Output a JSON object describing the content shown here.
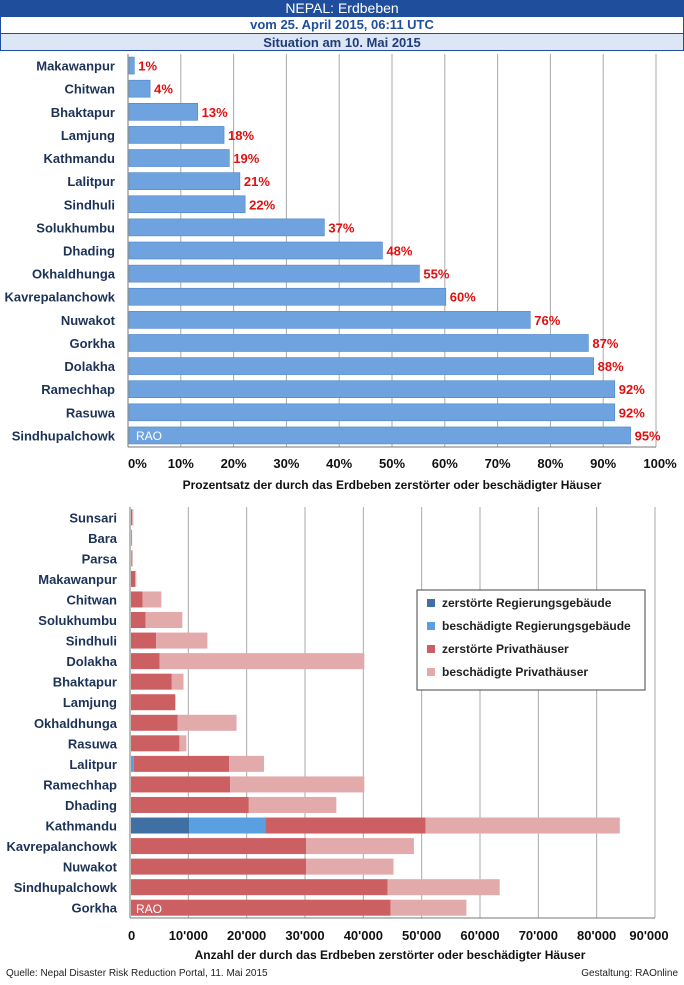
{
  "header": {
    "title": "NEPAL: Erdbeben",
    "subtitle": "vom 25. April 2015, 06:11 UTC",
    "situation": "Situation am 10. Mai 2015"
  },
  "watermark": "RAO",
  "footer": {
    "source": "Quelle:  Nepal Disaster Risk Reduction Portal, 11. Mai  2015",
    "credit": "Gestaltung: RAOnline"
  },
  "colors": {
    "bar1": "#6fa3e0",
    "label": "#e01010",
    "gov_destroyed": "#3f6fa3",
    "gov_damaged": "#5a9fe0",
    "priv_destroyed": "#cc5f62",
    "priv_damaged": "#e3aaab"
  },
  "chart_data": [
    {
      "type": "bar",
      "orientation": "horizontal",
      "categories": [
        "Makawanpur",
        "Chitwan",
        "Bhaktapur",
        "Lamjung",
        "Kathmandu",
        "Lalitpur",
        "Sindhuli",
        "Solukhumbu",
        "Dhading",
        "Okhaldhunga",
        "Kavrepalanchowk",
        "Nuwakot",
        "Gorkha",
        "Dolakha",
        "Ramechhap",
        "Rasuwa",
        "Sindhupalchowk"
      ],
      "values": [
        1,
        4,
        13,
        18,
        19,
        21,
        22,
        37,
        48,
        55,
        60,
        76,
        87,
        88,
        92,
        92,
        95
      ],
      "data_labels": [
        "1%",
        "4%",
        "13%",
        "18%",
        "19%",
        "21%",
        "22%",
        "37%",
        "48%",
        "55%",
        "60%",
        "76%",
        "87%",
        "88%",
        "92%",
        "92%",
        "95%"
      ],
      "xlabel": "Prozentsatz der durch das Erdbeben zerstörter oder beschädigter Häuser",
      "xlim": [
        0,
        100
      ],
      "x_ticks": [
        "0%",
        "10%",
        "20%",
        "30%",
        "40%",
        "50%",
        "60%",
        "70%",
        "80%",
        "90%",
        "100%"
      ],
      "grid": true
    },
    {
      "type": "bar",
      "orientation": "horizontal",
      "stacked": true,
      "categories": [
        "Sunsari",
        "Bara",
        "Parsa",
        "Makawanpur",
        "Chitwan",
        "Solukhumbu",
        "Sindhuli",
        "Dolakha",
        "Bhaktapur",
        "Lamjung",
        "Okhaldhunga",
        "Rasuwa",
        "Lalitpur",
        "Ramechhap",
        "Dhading",
        "Kathmandu",
        "Kavrepalanchowk",
        "Nuwakot",
        "Sindhupalchowk",
        "Gorkha"
      ],
      "series": [
        {
          "name": "zerstörte Regierungsgebäude",
          "values": [
            0,
            0,
            0,
            0,
            0,
            0,
            0,
            0,
            0,
            0,
            0,
            0,
            0,
            0,
            0,
            10000,
            0,
            0,
            0,
            0
          ]
        },
        {
          "name": "beschädigte Regierungsgebäude",
          "values": [
            0,
            0,
            0,
            0,
            0,
            0,
            0,
            0,
            0,
            0,
            0,
            0,
            500,
            0,
            0,
            13000,
            0,
            0,
            0,
            0
          ]
        },
        {
          "name": "zerstörte Privathäuser",
          "values": [
            200,
            100,
            100,
            700,
            2000,
            2500,
            4300,
            4900,
            7000,
            7600,
            8000,
            8300,
            16300,
            17000,
            20200,
            27500,
            30000,
            30000,
            44000,
            44500
          ]
        },
        {
          "name": "beschädigte Privathäuser",
          "values": [
            200,
            100,
            200,
            200,
            3200,
            6300,
            8800,
            35100,
            2000,
            0,
            10100,
            1200,
            6000,
            23000,
            15000,
            33300,
            18500,
            15000,
            19200,
            13000
          ]
        }
      ],
      "xlabel": "Anzahl der durch das Erdbeben zerstörter oder beschädigter Häuser",
      "xlim": [
        0,
        90000
      ],
      "x_ticks": [
        "0",
        "10'000",
        "20'000",
        "30'000",
        "40'000",
        "50'000",
        "60'000",
        "70'000",
        "80'000",
        "90'000"
      ],
      "grid": true,
      "legend_position": "right"
    }
  ]
}
